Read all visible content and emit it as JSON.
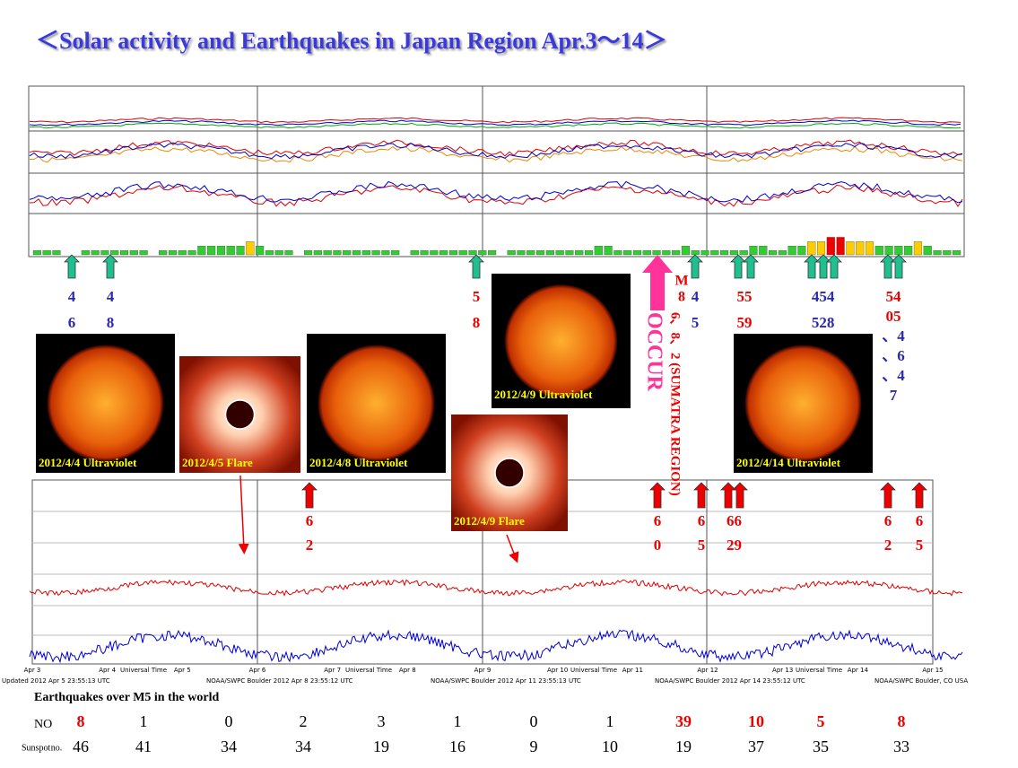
{
  "title": "＜Solar activity and Earthquakes in Japan Region Apr.3～14＞",
  "kp": {
    "values": [
      1,
      1,
      1,
      0,
      0,
      1,
      1,
      1,
      1,
      1,
      1,
      1,
      0,
      1,
      1,
      1,
      1,
      2,
      2,
      2,
      2,
      2,
      3,
      2,
      1,
      1,
      1,
      0,
      1,
      1,
      1,
      1,
      1,
      1,
      1,
      1,
      1,
      1,
      0,
      1,
      1,
      1,
      1,
      1,
      1,
      1,
      1,
      1,
      0,
      1,
      1,
      1,
      1,
      1,
      1,
      1,
      1,
      1,
      2,
      2,
      1,
      1,
      1,
      1,
      1,
      1,
      1,
      2,
      1,
      1,
      1,
      1,
      1,
      1,
      2,
      2,
      1,
      1,
      2,
      2,
      3,
      3,
      4,
      4,
      3,
      3,
      3,
      2,
      2,
      2,
      2,
      3,
      2,
      1,
      1,
      1
    ],
    "ylim": [
      0,
      9
    ],
    "thresholds": [
      3,
      4
    ],
    "colors": [
      "#33cc33",
      "#ffcc00",
      "#ee0000"
    ]
  },
  "japan_quakes": [
    [
      "4",
      "6"
    ],
    [
      "4",
      "8"
    ],
    [
      "5",
      "8"
    ],
    [
      "4",
      "5"
    ],
    [
      "55",
      "59"
    ],
    [
      "454",
      "528"
    ],
    [
      "54",
      "05",
      "、4",
      "、6",
      "、4",
      "7"
    ]
  ],
  "world_quakes": [
    [
      "6",
      "2"
    ],
    [
      "6",
      "0"
    ],
    [
      "6",
      "5"
    ],
    [
      "66",
      "29"
    ],
    [
      "6",
      "2"
    ],
    [
      "6",
      "5"
    ]
  ],
  "sumatra": {
    "m": "M",
    "lines": [
      "8",
      "6、8、2 (SUMATRA REGION)"
    ],
    "occur": "OCCUR"
  },
  "captions": [
    "2012/4/4 Ultraviolet",
    "2012/4/5 Flare",
    "2012/4/8 Ultraviolet",
    "2012/4/9 Ultraviolet",
    "2012/4/9 Flare",
    "2012/4/14 Ultraviolet"
  ],
  "xray_days": [
    "Apr 3",
    "Apr 4",
    "Apr 5",
    "Apr 6",
    "Apr 7",
    "Apr 8",
    "Apr 9",
    "Apr 10",
    "Apr 11",
    "Apr 12",
    "Apr 13",
    "Apr 14",
    "Apr 15"
  ],
  "xray_axis": "Universal Time",
  "footer": [
    "Updated 2012 Apr 5 23:55:13 UTC",
    "NOAA/SWPC Boulder 2012 Apr 8 23:55:12 UTC",
    "NOAA/SWPC Boulder 2012 Apr 11 23:55:13 UTC",
    "NOAA/SWPC Boulder 2012 Apr 14 23:55:12 UTC",
    "NOAA/SWPC Boulder, CO USA"
  ],
  "table": {
    "title": "Earthquakes over M5 in the world",
    "row_labels": [
      "NO",
      "Sunspot no."
    ],
    "quakes": [
      8,
      1,
      0,
      2,
      3,
      1,
      0,
      1,
      39,
      10,
      5,
      8
    ],
    "highlight": [
      true,
      false,
      false,
      false,
      false,
      false,
      false,
      false,
      true,
      true,
      true,
      true
    ],
    "sunspots": [
      46,
      41,
      34,
      34,
      19,
      16,
      9,
      10,
      19,
      37,
      35,
      33
    ]
  }
}
